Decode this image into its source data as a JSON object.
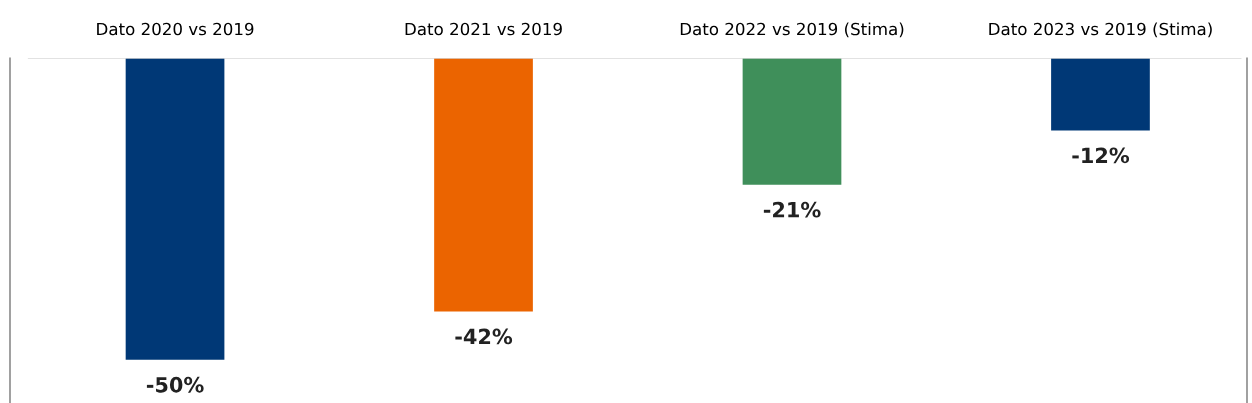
{
  "chart_data": {
    "type": "bar",
    "categories": [
      "Dato 2020 vs 2019",
      "Dato 2021 vs 2019",
      "Dato 2022 vs 2019 (Stima)",
      "Dato 2023 vs 2019 (Stima)"
    ],
    "values": [
      -50,
      -42,
      -21,
      -12
    ],
    "colors": [
      "#003876",
      "#eb6400",
      "#3f8f5a",
      "#003876"
    ],
    "value_labels": [
      "-50%",
      "-42%",
      "-21%",
      "-12%"
    ],
    "grid": false,
    "legend": false
  }
}
